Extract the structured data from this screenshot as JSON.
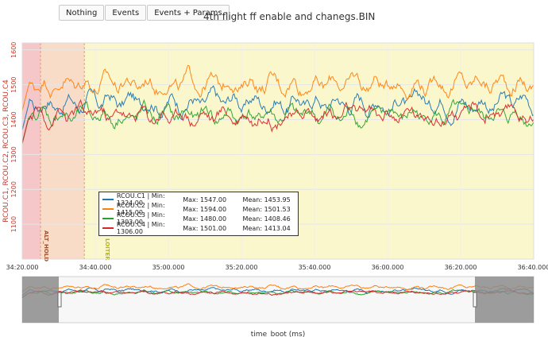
{
  "toolbar": {
    "buttons": [
      "Nothing",
      "Events",
      "Events + Params"
    ]
  },
  "title": "4th flight ff enable and chanegs.BIN",
  "colors": {
    "c1": "#1f77b4",
    "c2": "#ff7f0e",
    "c3": "#2ca02c",
    "c4": "#d62728",
    "mode_althold": "#f5c7c9",
    "mode_althold2": "#f8dcc8",
    "mode_loiter": "#fbf7cc",
    "althold_label": "#a0522d",
    "loiter_label": "#b8b800",
    "axis_label": "#c0392b"
  },
  "chart_data": {
    "type": "line",
    "title": "4th flight ff enable and chanegs.BIN",
    "ylabel": "RCOU.C1, RCOU.C2, RCOU.C3, RCOU.C4",
    "xlabel": "time_boot (ms)",
    "ylim": [
      1000,
      1620
    ],
    "xlim_s": [
      2060,
      2200
    ],
    "x_ticks": [
      "34:20.000",
      "34:40.000",
      "35:00.000",
      "35:20.000",
      "35:40.000",
      "36:00.000",
      "36:20.000",
      "36:40.000"
    ],
    "y_ticks": [
      1100,
      1200,
      1300,
      1400,
      1500,
      1600
    ],
    "grid": true,
    "modes": [
      {
        "label": "ALT_HOLD",
        "start_s": 2060,
        "end_s": 2065
      },
      {
        "label": "",
        "start_s": 2065,
        "end_s": 2077
      },
      {
        "label": "LOITER",
        "start_s": 2077,
        "end_s": 2200
      }
    ],
    "series": [
      {
        "name": "RCOU.C1",
        "min": 1324.0,
        "max": 1547.0,
        "mean": 1453.95,
        "center": 1450,
        "amp": 40
      },
      {
        "name": "RCOU.C2",
        "min": 1415.0,
        "max": 1594.0,
        "mean": 1501.53,
        "center": 1505,
        "amp": 40
      },
      {
        "name": "RCOU.C3",
        "min": 1303.0,
        "max": 1480.0,
        "mean": 1408.46,
        "center": 1410,
        "amp": 38
      },
      {
        "name": "RCOU.C4",
        "min": 1306.0,
        "max": 1501.0,
        "mean": 1413.04,
        "center": 1413,
        "amp": 38
      }
    ]
  },
  "legend": {
    "rows": [
      {
        "name": "RCOU.C1 | Min: 1324.00",
        "max": "Max: 1547.00",
        "mean": "Mean: 1453.95"
      },
      {
        "name": "RCOU.C2 | Min: 1415.00",
        "max": "Max: 1594.00",
        "mean": "Mean: 1501.53"
      },
      {
        "name": "RCOU.C3 | Min: 1303.00",
        "max": "Max: 1480.00",
        "mean": "Mean: 1408.46"
      },
      {
        "name": "RCOU.C4 | Min: 1306.00",
        "max": "Max: 1501.00",
        "mean": "Mean: 1413.04"
      }
    ]
  },
  "xlabel": "time_boot (ms)"
}
